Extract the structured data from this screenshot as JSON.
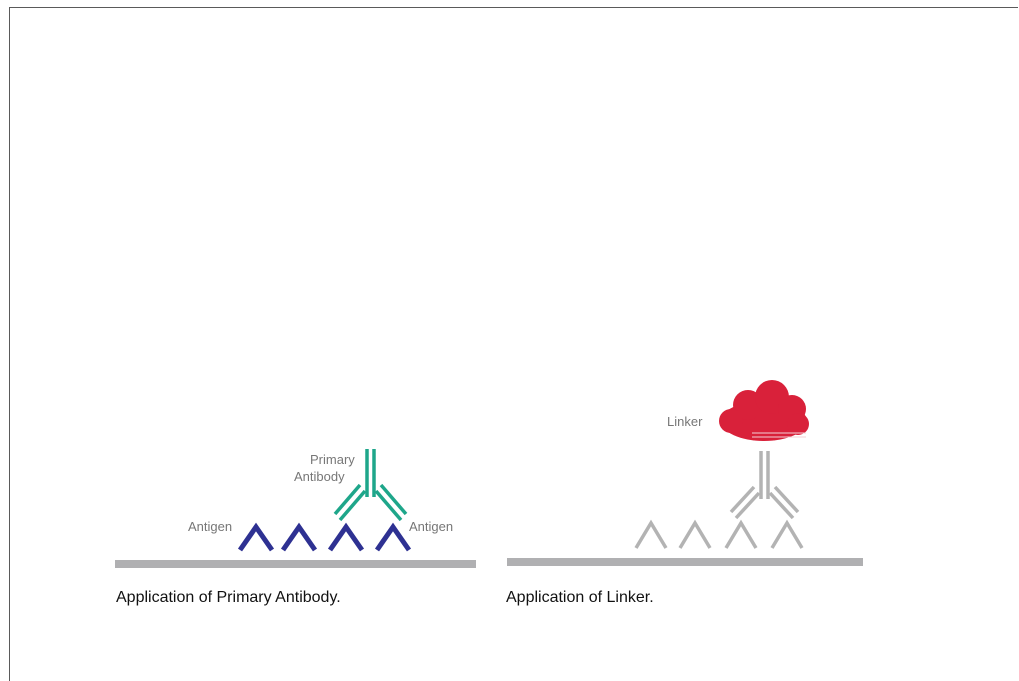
{
  "panels": [
    {
      "caption": "Application of Primary Antibody.",
      "labels": {
        "antigen_left": "Antigen",
        "antigen_right": "Antigen",
        "antibody_line1": "Primary",
        "antibody_line2": "Antibody"
      }
    },
    {
      "caption": "Application of Linker.",
      "labels": {
        "linker": "Linker"
      }
    }
  ],
  "colors": {
    "surface": "#b0b0b2",
    "antigen_active": "#2e3192",
    "antibody_active": "#1ea68a",
    "faded": "#b3b3b3",
    "linker": "#d9213a"
  }
}
